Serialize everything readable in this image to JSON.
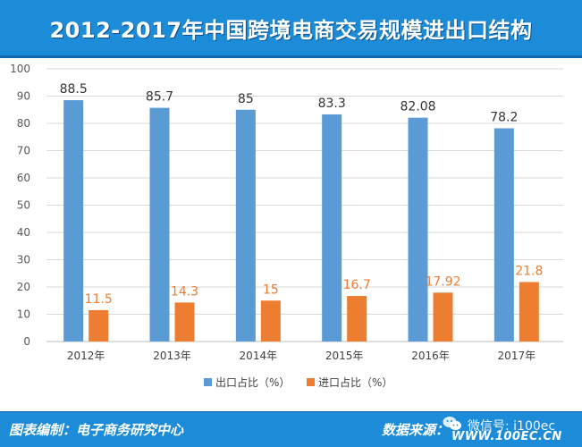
{
  "title": "2012-2017年中国跨境电商交易规模进出口结构",
  "chart_data": {
    "type": "bar",
    "title": "2012-2017年中国跨境电商交易规模进出口结构",
    "categories": [
      "2012年",
      "2013年",
      "2014年",
      "2015年",
      "2016年",
      "2017年"
    ],
    "series": [
      {
        "name": "出口占比（%）",
        "color": "#5b9bd5",
        "values": [
          88.5,
          85.7,
          85,
          83.3,
          82.08,
          78.2
        ],
        "labels": [
          "88.5",
          "85.7",
          "85",
          "83.3",
          "82.08",
          "78.2"
        ]
      },
      {
        "name": "进口占比（%）",
        "color": "#ed7d31",
        "values": [
          11.5,
          14.3,
          15,
          16.7,
          17.92,
          21.8
        ],
        "labels": [
          "11.5",
          "14.3",
          "15",
          "16.7",
          "17.92",
          "21.8"
        ]
      }
    ],
    "ylim": [
      0,
      100
    ],
    "yticks": [
      "0",
      "10",
      "20",
      "30",
      "40",
      "50",
      "60",
      "70",
      "80",
      "90",
      "100"
    ],
    "grid": true,
    "legend": "bottom-center",
    "xlabel": "",
    "ylabel": ""
  },
  "footer": {
    "credit": "图表编制：电子商务研究中心",
    "source_label": "数据来源：",
    "wechat": "微信号: i100ec",
    "url": "WWW.100EC.CN"
  },
  "colors": {
    "header_bg": "#1c8bd8",
    "export": "#5b9bd5",
    "import": "#ed7d31",
    "export_label": "#333333",
    "import_label": "#ed7d31"
  }
}
